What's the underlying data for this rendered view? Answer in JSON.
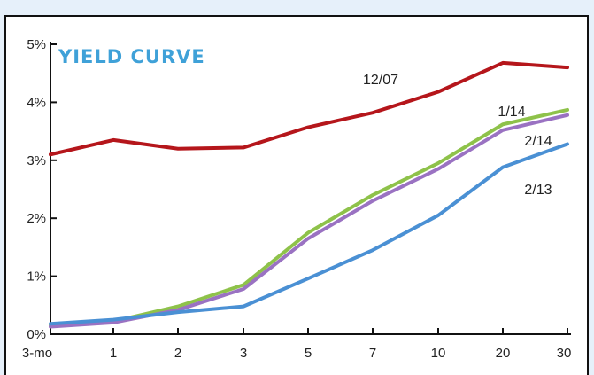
{
  "chart_data": {
    "type": "line",
    "title": "YIELD CURVE",
    "xlabel": "",
    "ylabel": "",
    "categories": [
      "3-mo",
      "1",
      "2",
      "3",
      "5",
      "7",
      "10",
      "20",
      "30"
    ],
    "yticks": [
      "0%",
      "1%",
      "2%",
      "3%",
      "4%",
      "5%"
    ],
    "ylim": [
      0,
      5
    ],
    "grid": false,
    "series": [
      {
        "name": "12/07",
        "color": "#b5161b",
        "values": [
          3.1,
          3.35,
          3.2,
          3.22,
          3.57,
          3.82,
          4.18,
          4.68,
          4.6
        ]
      },
      {
        "name": "1/14",
        "color": "#8ec24a",
        "values": [
          0.15,
          0.22,
          0.48,
          0.85,
          1.75,
          2.4,
          2.95,
          3.62,
          3.87
        ]
      },
      {
        "name": "2/14",
        "color": "#9a72c2",
        "values": [
          0.13,
          0.2,
          0.42,
          0.78,
          1.65,
          2.3,
          2.85,
          3.52,
          3.78
        ]
      },
      {
        "name": "2/13",
        "color": "#4a90d4",
        "values": [
          0.18,
          0.25,
          0.38,
          0.48,
          0.96,
          1.45,
          2.05,
          2.88,
          3.28
        ]
      }
    ],
    "title_color": "#3fa1d8",
    "axis_color": "#111111"
  }
}
